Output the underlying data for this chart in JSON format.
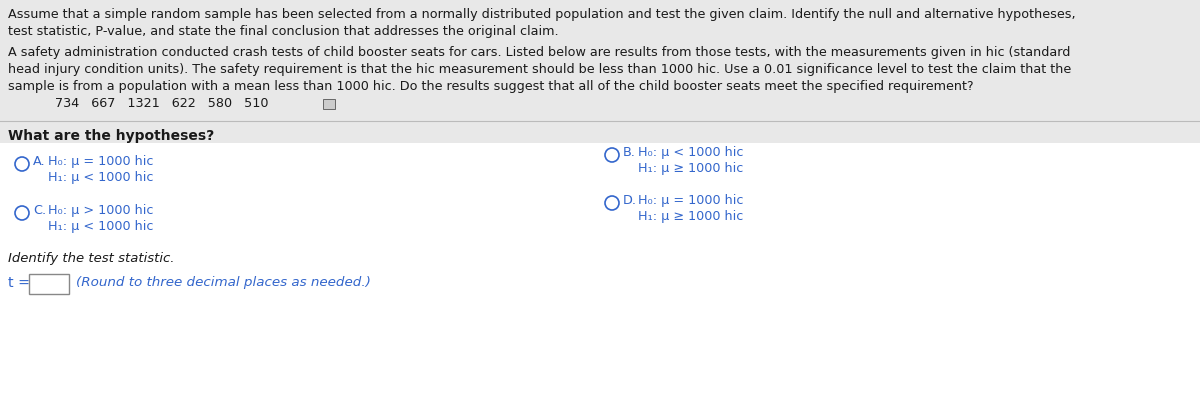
{
  "bg_color": "#ffffff",
  "top_bg_color": "#e8e8e8",
  "top_text_line1": "Assume that a simple random sample has been selected from a normally distributed population and test the given claim. Identify the null and alternative hypotheses,",
  "top_text_line2": "test statistic, P-value, and state the final conclusion that addresses the original claim.",
  "para_line1": "A safety administration conducted crash tests of child booster seats for cars. Listed below are results from those tests, with the measurements given in hic (standard",
  "para_line2": "head injury condition units). The safety requirement is that the hic measurement should be less than 1000 hic. Use a 0.01 significance level to test the claim that the",
  "para_line3": "sample is from a population with a mean less than 1000 hic. Do the results suggest that all of the child booster seats meet the specified requirement?",
  "data_values": "734   667   1321   622   580   510",
  "section_label": "What are the hypotheses?",
  "optA_h0": "H₀: μ = 1000 hic",
  "optA_h1": "H₁: μ < 1000 hic",
  "optB_h0": "H₀: μ < 1000 hic",
  "optB_h1": "H₁: μ ≥ 1000 hic",
  "optC_h0": "H₀: μ > 1000 hic",
  "optC_h1": "H₁: μ < 1000 hic",
  "optD_h0": "H₀: μ = 1000 hic",
  "optD_h1": "H₁: μ ≥ 1000 hic",
  "identify_label": "Identify the test statistic.",
  "t_label": "t =",
  "round_label": "(Round to three decimal places as needed.)",
  "text_color": "#1a1a1a",
  "blue_color": "#3366cc",
  "circle_color": "#3366cc",
  "divider_color": "#bbbbbb",
  "font_size": 9.2,
  "font_size_section": 10.0,
  "font_size_identify": 9.5
}
